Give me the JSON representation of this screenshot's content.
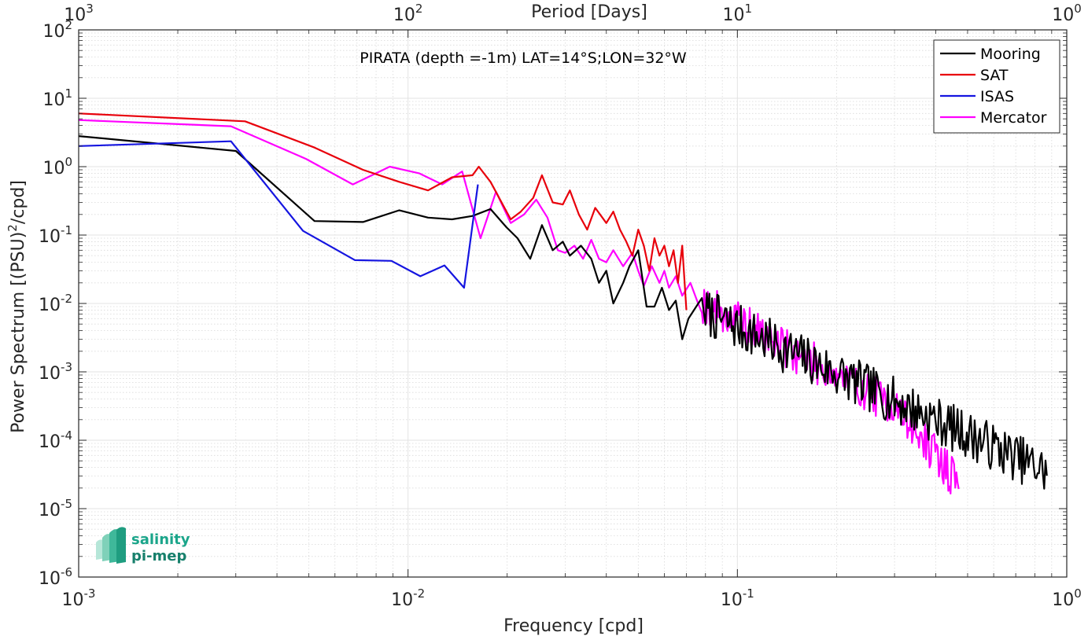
{
  "chart_data": {
    "type": "line",
    "annotation": "PIRATA (depth =-1m) LAT=14°S;LON=32°W",
    "xlabel": "Frequency [cpd]",
    "ylabel_main": "Power Spectrum [(PSU)",
    "ylabel_sup": "2",
    "ylabel_tail": "/cpd]",
    "top_xlabel": "Period [Days]",
    "x_scale": "log",
    "y_scale": "log",
    "xlim": [
      0.001,
      1
    ],
    "ylim": [
      1e-06,
      100
    ],
    "grid": true,
    "legend_position": "top-right",
    "x_ticks": [
      {
        "value": 0.001,
        "base": "10",
        "exp": "-3"
      },
      {
        "value": 0.01,
        "base": "10",
        "exp": "-2"
      },
      {
        "value": 0.1,
        "base": "10",
        "exp": "-1"
      },
      {
        "value": 1,
        "base": "10",
        "exp": "0"
      }
    ],
    "y_ticks": [
      {
        "value": 1e-06,
        "base": "10",
        "exp": "-6"
      },
      {
        "value": 1e-05,
        "base": "10",
        "exp": "-5"
      },
      {
        "value": 0.0001,
        "base": "10",
        "exp": "-4"
      },
      {
        "value": 0.001,
        "base": "10",
        "exp": "-3"
      },
      {
        "value": 0.01,
        "base": "10",
        "exp": "-2"
      },
      {
        "value": 0.1,
        "base": "10",
        "exp": "-1"
      },
      {
        "value": 1,
        "base": "10",
        "exp": "0"
      },
      {
        "value": 10,
        "base": "10",
        "exp": "1"
      },
      {
        "value": 100,
        "base": "10",
        "exp": "2"
      }
    ],
    "top_ticks": [
      {
        "freq": 0.001,
        "base": "10",
        "exp": "3"
      },
      {
        "freq": 0.01,
        "base": "10",
        "exp": "2"
      },
      {
        "freq": 0.1,
        "base": "10",
        "exp": "1"
      },
      {
        "freq": 1,
        "base": "10",
        "exp": "0"
      }
    ],
    "series": [
      {
        "name": "Mooring",
        "color": "#000000",
        "noise": {
          "from": 0.08,
          "to": 0.87,
          "n": 260,
          "slope": -2.25,
          "ref_x": 0.1,
          "ref_y": 0.0045,
          "amp": 0.35,
          "seed": 7
        },
        "points": [
          [
            0.001,
            2.8
          ],
          [
            0.003,
            1.7
          ],
          [
            0.0052,
            0.16
          ],
          [
            0.0073,
            0.155
          ],
          [
            0.0094,
            0.23
          ],
          [
            0.0115,
            0.18
          ],
          [
            0.0136,
            0.17
          ],
          [
            0.0157,
            0.19
          ],
          [
            0.0178,
            0.24
          ],
          [
            0.0199,
            0.13
          ],
          [
            0.0215,
            0.09
          ],
          [
            0.0235,
            0.045
          ],
          [
            0.0255,
            0.14
          ],
          [
            0.0275,
            0.06
          ],
          [
            0.0295,
            0.08
          ],
          [
            0.031,
            0.05
          ],
          [
            0.0335,
            0.07
          ],
          [
            0.036,
            0.045
          ],
          [
            0.038,
            0.02
          ],
          [
            0.04,
            0.03
          ],
          [
            0.042,
            0.01
          ],
          [
            0.045,
            0.02
          ],
          [
            0.047,
            0.035
          ],
          [
            0.05,
            0.06
          ],
          [
            0.053,
            0.009
          ],
          [
            0.056,
            0.009
          ],
          [
            0.059,
            0.017
          ],
          [
            0.062,
            0.008
          ],
          [
            0.065,
            0.011
          ],
          [
            0.068,
            0.003
          ],
          [
            0.071,
            0.006
          ],
          [
            0.075,
            0.009
          ],
          [
            0.078,
            0.012
          ]
        ]
      },
      {
        "name": "SAT",
        "color": "#e8000b",
        "points": [
          [
            0.001,
            6.0
          ],
          [
            0.0032,
            4.6
          ],
          [
            0.0052,
            1.9
          ],
          [
            0.0073,
            0.9
          ],
          [
            0.0094,
            0.6
          ],
          [
            0.0115,
            0.45
          ],
          [
            0.0136,
            0.7
          ],
          [
            0.0157,
            0.75
          ],
          [
            0.0164,
            1.0
          ],
          [
            0.0178,
            0.6
          ],
          [
            0.0205,
            0.17
          ],
          [
            0.022,
            0.22
          ],
          [
            0.024,
            0.35
          ],
          [
            0.0255,
            0.75
          ],
          [
            0.0275,
            0.3
          ],
          [
            0.0295,
            0.28
          ],
          [
            0.031,
            0.45
          ],
          [
            0.033,
            0.2
          ],
          [
            0.035,
            0.12
          ],
          [
            0.037,
            0.25
          ],
          [
            0.04,
            0.15
          ],
          [
            0.042,
            0.22
          ],
          [
            0.044,
            0.12
          ],
          [
            0.046,
            0.08
          ],
          [
            0.048,
            0.05
          ],
          [
            0.05,
            0.12
          ],
          [
            0.052,
            0.07
          ],
          [
            0.054,
            0.03
          ],
          [
            0.056,
            0.09
          ],
          [
            0.058,
            0.05
          ],
          [
            0.06,
            0.07
          ],
          [
            0.062,
            0.035
          ],
          [
            0.064,
            0.06
          ],
          [
            0.066,
            0.02
          ],
          [
            0.068,
            0.07
          ],
          [
            0.07,
            0.008
          ]
        ]
      },
      {
        "name": "ISAS",
        "color": "#1515e0",
        "points": [
          [
            0.001,
            2.0
          ],
          [
            0.0029,
            2.35
          ],
          [
            0.0048,
            0.115
          ],
          [
            0.0069,
            0.043
          ],
          [
            0.0089,
            0.042
          ],
          [
            0.0109,
            0.025
          ],
          [
            0.0129,
            0.036
          ],
          [
            0.0148,
            0.017
          ],
          [
            0.0163,
            0.55
          ]
        ]
      },
      {
        "name": "Mercator",
        "color": "#ff00ff",
        "noise": {
          "from": 0.078,
          "to": 0.47,
          "n": 220,
          "slope": -2.6,
          "ref_x": 0.1,
          "ref_y": 0.0055,
          "amp": 0.3,
          "steep_from": 0.3,
          "seed": 19
        },
        "points": [
          [
            0.001,
            4.8
          ],
          [
            0.0029,
            3.9
          ],
          [
            0.0049,
            1.3
          ],
          [
            0.0068,
            0.55
          ],
          [
            0.0088,
            1.0
          ],
          [
            0.0108,
            0.8
          ],
          [
            0.0127,
            0.55
          ],
          [
            0.0146,
            0.85
          ],
          [
            0.0166,
            0.09
          ],
          [
            0.0185,
            0.43
          ],
          [
            0.0205,
            0.15
          ],
          [
            0.0225,
            0.2
          ],
          [
            0.0245,
            0.33
          ],
          [
            0.0265,
            0.18
          ],
          [
            0.0285,
            0.06
          ],
          [
            0.03,
            0.055
          ],
          [
            0.032,
            0.07
          ],
          [
            0.034,
            0.045
          ],
          [
            0.036,
            0.085
          ],
          [
            0.038,
            0.045
          ],
          [
            0.04,
            0.04
          ],
          [
            0.042,
            0.06
          ],
          [
            0.045,
            0.035
          ],
          [
            0.048,
            0.055
          ],
          [
            0.05,
            0.03
          ],
          [
            0.052,
            0.018
          ],
          [
            0.055,
            0.035
          ],
          [
            0.058,
            0.02
          ],
          [
            0.06,
            0.03
          ],
          [
            0.062,
            0.017
          ],
          [
            0.065,
            0.025
          ],
          [
            0.068,
            0.013
          ],
          [
            0.072,
            0.02
          ],
          [
            0.076,
            0.01
          ]
        ]
      }
    ]
  },
  "logo": {
    "line1": "salinity",
    "line2": "pi-mep"
  }
}
